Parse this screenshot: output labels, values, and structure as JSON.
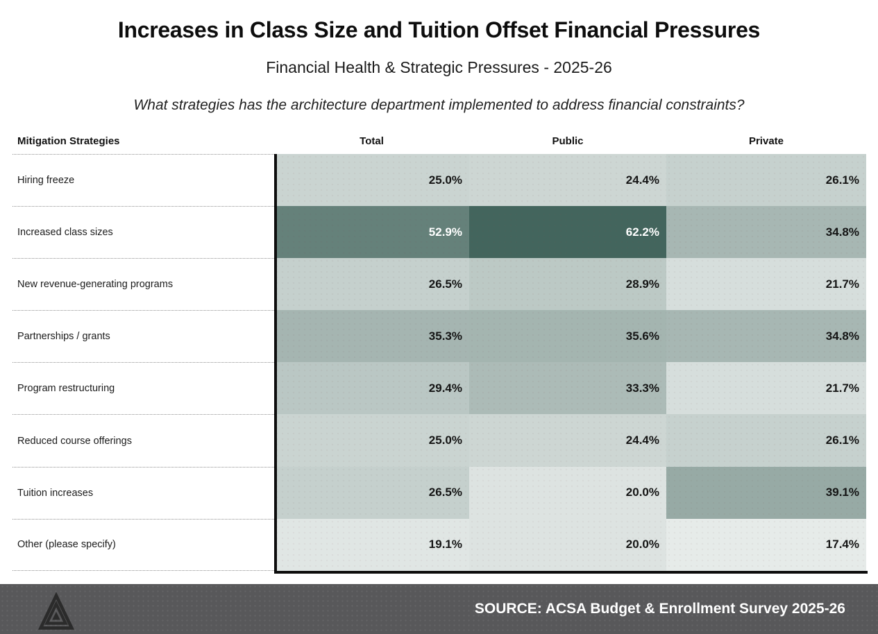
{
  "page": {
    "title": "Increases in Class Size and Tuition Offset Financial Pressures",
    "subtitle": "Financial Health & Strategic Pressures - 2025-26",
    "question": "What strategies has the architecture department implemented to address financial constraints?"
  },
  "footer": {
    "source": "SOURCE: ACSA Budget & Enrollment Survey 2025-26",
    "logo_icon": "striped-triangle-logo",
    "bar_color": "#58585a",
    "text_color": "#ffffff"
  },
  "colors": {
    "border_black": "#0d0d0d",
    "row_separator": "#8f8f8f",
    "heatmap_min_color": "#E6EBE9",
    "heatmap_max_color": "#43655D"
  },
  "chart_data": {
    "type": "heatmap",
    "title": "Increases in Class Size and Tuition Offset Financial Pressures",
    "subtitle": "Financial Health & Strategic Pressures - 2025-26",
    "question": "What strategies has the architecture department implemented to address financial constraints?",
    "row_label_header": "Mitigation Strategies",
    "columns": [
      "Total",
      "Public",
      "Private"
    ],
    "rows": [
      "Hiring freeze",
      "Increased class sizes",
      "New revenue-generating programs",
      "Partnerships / grants",
      "Program restructuring",
      "Reduced course offerings",
      "Tuition increases",
      "Other (please specify)"
    ],
    "values": [
      [
        25.0,
        24.4,
        26.1
      ],
      [
        52.9,
        62.2,
        34.8
      ],
      [
        26.5,
        28.9,
        21.7
      ],
      [
        35.3,
        35.6,
        34.8
      ],
      [
        29.4,
        33.3,
        21.7
      ],
      [
        25.0,
        24.4,
        26.1
      ],
      [
        26.5,
        20.0,
        39.1
      ],
      [
        19.1,
        20.0,
        17.4
      ]
    ],
    "value_format": "one_decimal_percent",
    "color_scale": {
      "min_value": 17.4,
      "max_value": 62.2,
      "min_color": "#E6EBE9",
      "max_color": "#43655D",
      "text_white_above": 45
    },
    "legend": "none",
    "layout_hints": "dotted separators in label column only; thick black border left and bottom of heatmap area"
  }
}
